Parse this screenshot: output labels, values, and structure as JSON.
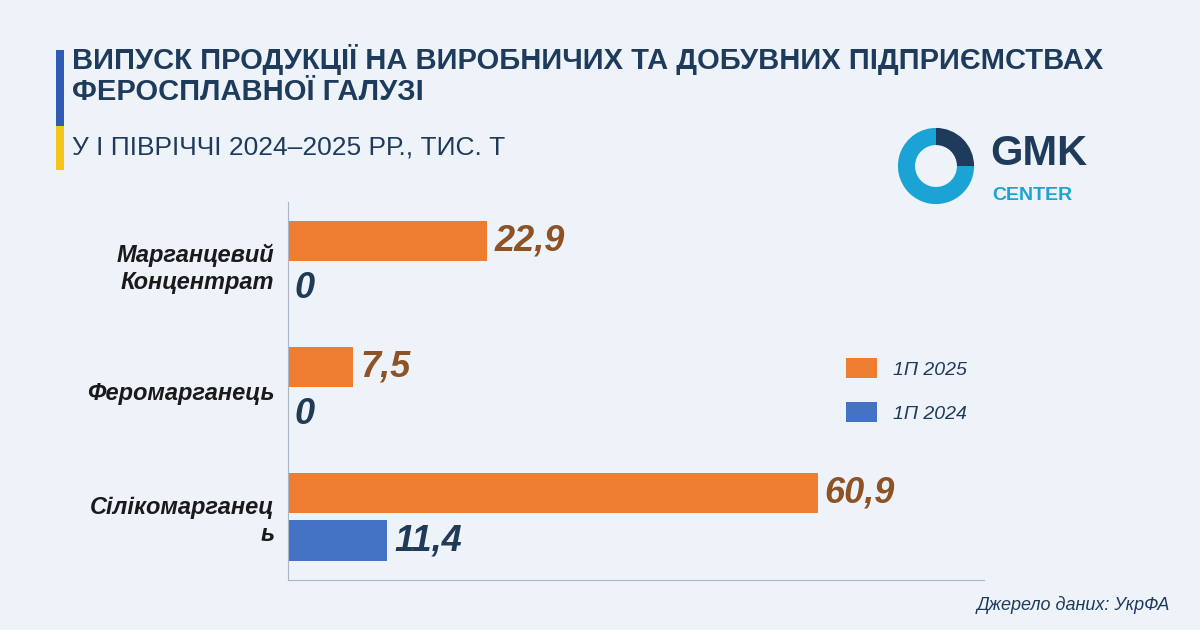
{
  "chart_data": {
    "type": "bar",
    "orientation": "horizontal",
    "title": "ВИПУСК ПРОДУКЦІЇ НА ВИРОБНИЧИХ ТА ДОБУВНИХ ПІДПРИЄМСТВАХ ФЕРОСПЛАВНОЇ ГАЛУЗІ",
    "subtitle": "У І ПІВРІЧЧІ 2024–2025 РР., ТИС. Т",
    "categories": [
      "Марганцевий Концентрат",
      "Феромарганець",
      "Сілікомарганець"
    ],
    "series": [
      {
        "name": "1П 2025",
        "color": "#ED7D31",
        "values": [
          22.9,
          7.5,
          60.9
        ],
        "value_labels": [
          "22,9",
          "7,5",
          "60,9"
        ]
      },
      {
        "name": "1П 2024",
        "color": "#4472C4",
        "values": [
          0,
          0,
          11.4
        ],
        "value_labels": [
          "0",
          "0",
          "11,4"
        ]
      }
    ],
    "xlim": [
      0,
      80
    ],
    "xticks": [],
    "tick_labels": "y",
    "data_labels": true,
    "grid": false,
    "legend": "center right",
    "source": "Джерело даних: УкрФА",
    "logo": {
      "text": "GMK",
      "subtext": "CENTER"
    }
  }
}
